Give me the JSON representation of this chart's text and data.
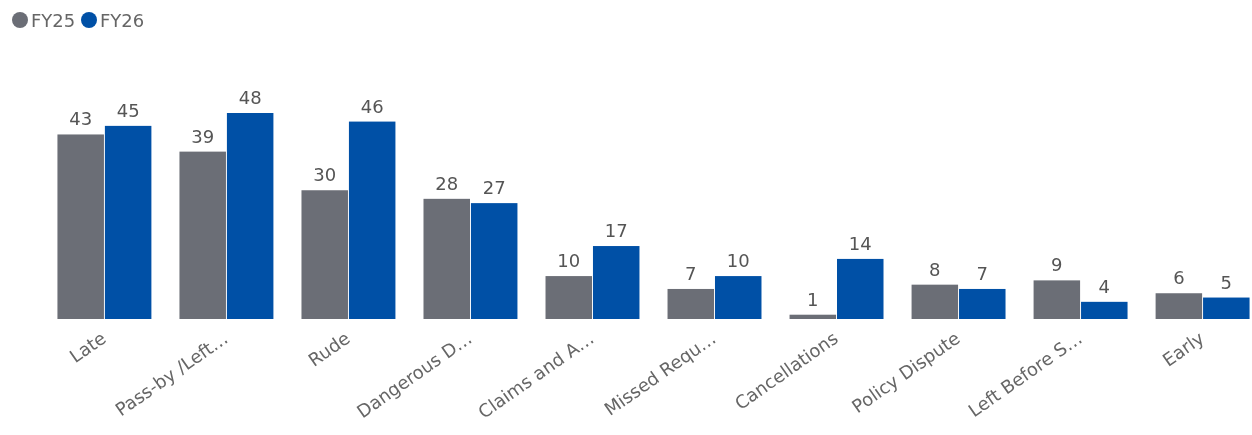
{
  "chart_data": {
    "type": "bar",
    "categories": [
      "Late",
      "Pass-by /Left…",
      "Rude",
      "Dangerous D…",
      "Claims and A…",
      "Missed Requ…",
      "Cancellations",
      "Policy Dispute",
      "Left Before S…",
      "Early"
    ],
    "series": [
      {
        "name": "FY25",
        "color": "#6b6e76",
        "values": [
          43,
          39,
          30,
          28,
          10,
          7,
          1,
          8,
          9,
          6
        ]
      },
      {
        "name": "FY26",
        "color": "#0050a6",
        "values": [
          45,
          48,
          46,
          27,
          17,
          10,
          14,
          7,
          4,
          5
        ]
      }
    ],
    "data_labels": true,
    "legend": "top left",
    "grid": false
  }
}
